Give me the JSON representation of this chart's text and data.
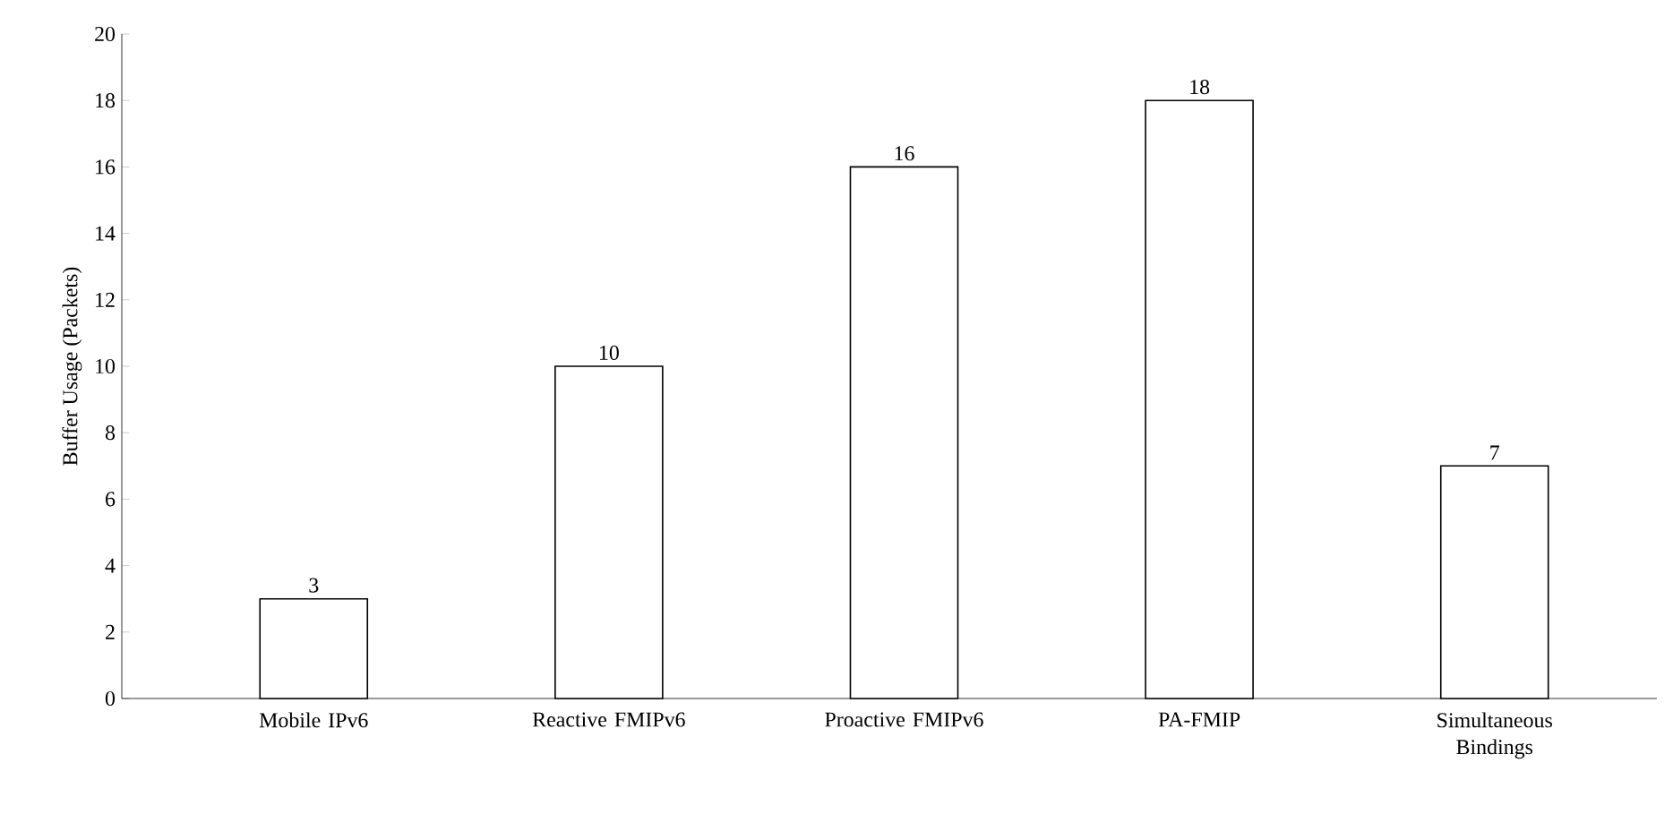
{
  "chart_data": {
    "type": "bar",
    "ylabel": "Buffer Usage (Packets)",
    "categories": [
      "Mobile IPv6",
      "Reactive FMIPv6",
      "Proactive FMIPv6",
      "PA-FMIP",
      "Simultaneous Bindings"
    ],
    "values": [
      3,
      10,
      16,
      18,
      7
    ],
    "color": "#ffffff",
    "ylim": [
      0,
      20
    ],
    "yticks": [
      0,
      2,
      4,
      6,
      8,
      10,
      12,
      14,
      16,
      18,
      20
    ],
    "data_labels": true,
    "grid": false
  }
}
